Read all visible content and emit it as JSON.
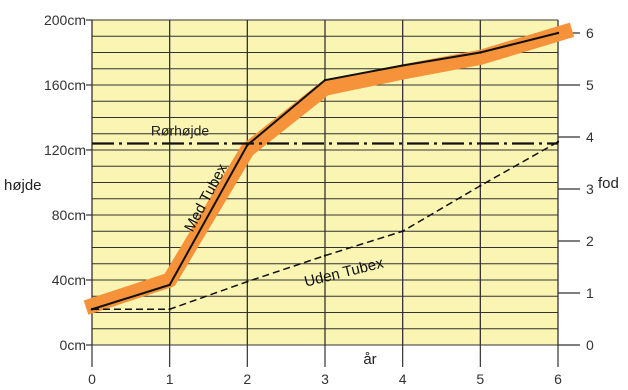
{
  "chart_data": {
    "type": "line",
    "ylabel_left": "højde",
    "ylabel_right": "fod",
    "xlabel": "år",
    "x_ticks": [
      "0",
      "1",
      "2",
      "3",
      "4",
      "5",
      "6"
    ],
    "y_left_ticks": [
      {
        "value": 0,
        "label": "0cm"
      },
      {
        "value": 40,
        "label": "40cm"
      },
      {
        "value": 80,
        "label": "80cm"
      },
      {
        "value": 120,
        "label": "120cm"
      },
      {
        "value": 160,
        "label": "160cm"
      },
      {
        "value": 200,
        "label": "200cm"
      }
    ],
    "y_right_ticks": [
      "0",
      "1",
      "2",
      "3",
      "4",
      "5",
      "6"
    ],
    "xlim": [
      0,
      6
    ],
    "ylim": [
      0,
      200
    ],
    "series": [
      {
        "name": "Med Tubex",
        "color": "#f5923a",
        "x": [
          0,
          1,
          2,
          3,
          4,
          5,
          6
        ],
        "y": [
          22,
          37,
          123,
          163,
          172,
          180,
          192
        ]
      },
      {
        "name": "Uden Tubex",
        "color": "#111111",
        "x": [
          0,
          1,
          2,
          3,
          4,
          5,
          6
        ],
        "y": [
          22,
          22,
          39,
          55,
          70,
          98,
          125
        ]
      }
    ],
    "reference_line": {
      "label": "Rørhøjde",
      "y": 124
    },
    "grid": true,
    "background": "#fbf5b3",
    "highlight_band": {
      "name": "Med Tubex",
      "color": "#f5923a",
      "y": [
        23,
        40,
        120,
        158,
        168,
        177,
        194
      ]
    }
  }
}
